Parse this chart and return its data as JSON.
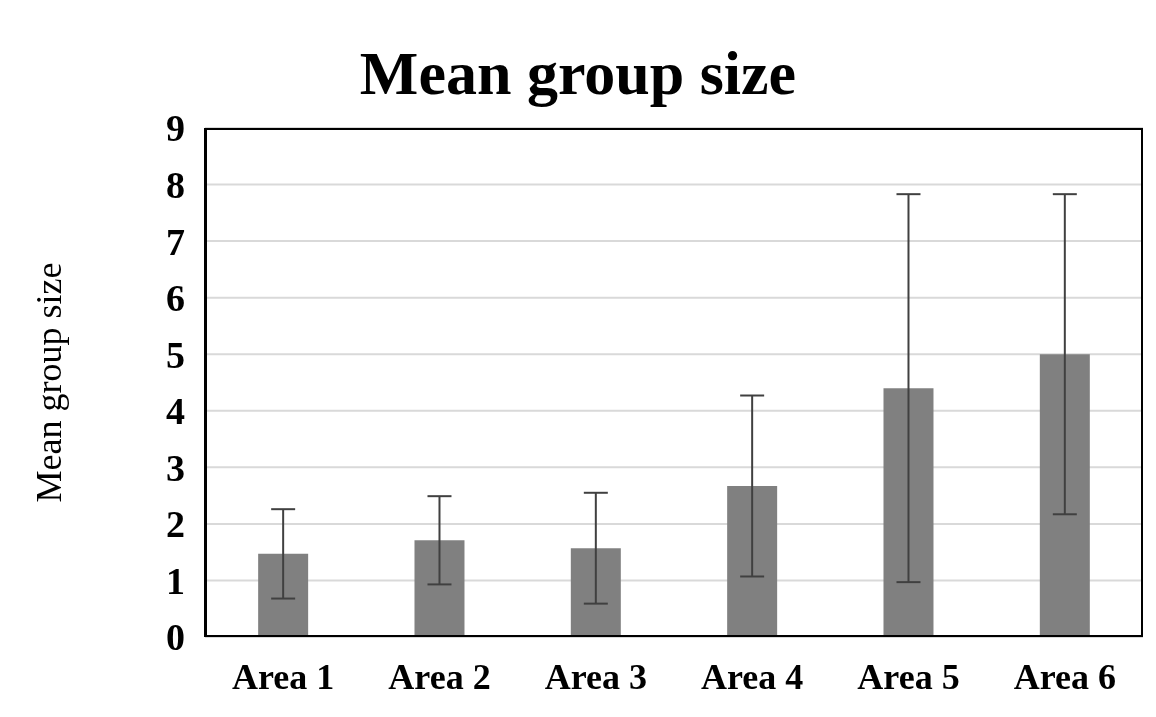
{
  "chart_data": {
    "type": "bar",
    "title": "Mean group size",
    "ylabel": "Mean group size",
    "categories": [
      "Area 1",
      "Area 2",
      "Area 3",
      "Area 4",
      "Area 5",
      "Area 6"
    ],
    "values": [
      1.47,
      1.71,
      1.57,
      2.67,
      4.4,
      5.0
    ],
    "errors": [
      0.79,
      0.78,
      0.98,
      1.6,
      3.43,
      2.83
    ],
    "color": "#808080",
    "ylim": [
      0,
      9
    ],
    "yticks": [
      0,
      1,
      2,
      3,
      4,
      5,
      6,
      7,
      8,
      9
    ],
    "grid": "y"
  }
}
